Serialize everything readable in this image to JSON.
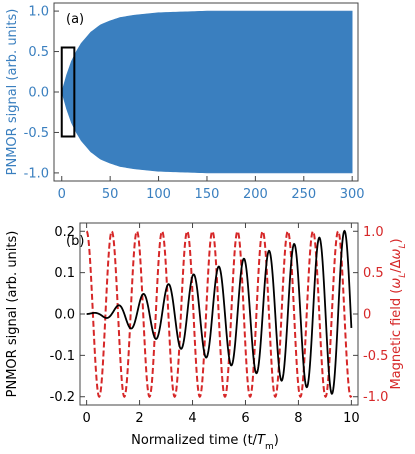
{
  "chart_data": [
    {
      "type": "area",
      "panel_label": "(a)",
      "ylabel": "PNMOR signal (arb. units)",
      "xlim": [
        -8,
        306
      ],
      "ylim": [
        -1.1,
        1.1
      ],
      "xticks": [
        0,
        50,
        100,
        150,
        200,
        250,
        300
      ],
      "yticks": [
        -1.0,
        -0.5,
        0.0,
        0.5,
        1.0
      ],
      "ytick_labels": [
        "-1.0",
        "-0.5",
        "0.0",
        "0.5",
        "1.0"
      ],
      "series": [
        {
          "envelope_x": [
            0,
            5,
            10,
            15,
            20,
            30,
            40,
            50,
            60,
            75,
            100,
            125,
            150,
            200,
            250,
            300
          ],
          "envelope_upper": [
            0.0,
            0.21,
            0.38,
            0.5,
            0.6,
            0.74,
            0.83,
            0.88,
            0.92,
            0.95,
            0.98,
            0.99,
            1.0,
            1.0,
            1.0,
            1.0
          ],
          "color": "#3a7fbf"
        }
      ],
      "annotation": "rectangle_x_0_to_13_y_-0.55_to_0.55"
    },
    {
      "type": "line",
      "panel_label": "(b)",
      "xlabel": "Normalized time (t/",
      "xlabel_sym": "T",
      "xlabel_sub": "m",
      "xlabel_end": ")",
      "ylabel": "PNMOR signal (arb. units)",
      "ylabel_right": "Magnetic field (",
      "xlim": [
        -0.25,
        10.25
      ],
      "ylim": [
        -0.22,
        0.22
      ],
      "y2lim": [
        -1.1,
        1.1
      ],
      "xticks": [
        0,
        2,
        4,
        6,
        8,
        10
      ],
      "yticks": [
        -0.2,
        -0.1,
        0.0,
        0.1,
        0.2
      ],
      "ytick_labels": [
        "-0.2",
        "-0.1",
        "0.0",
        "0.1",
        "0.2"
      ],
      "y2ticks": [
        -1.0,
        -0.5,
        0,
        0.5,
        1.0
      ],
      "y2tick_labels": [
        "-1.0",
        "-0.5",
        "0",
        "0.5",
        "1.0"
      ],
      "series": [
        {
          "color": "#000000",
          "dashed": false,
          "x": [
            0.0,
            0.5,
            1.0,
            1.5,
            2.0,
            3.0,
            4.0,
            5.0,
            6.0,
            7.0,
            8.0,
            9.0,
            9.5,
            10.0
          ],
          "amplitude": [
            0.0,
            0.005,
            0.015,
            0.03,
            0.045,
            0.07,
            0.095,
            0.115,
            0.135,
            0.155,
            0.172,
            0.188,
            0.197,
            0.205
          ],
          "period": 0.95
        },
        {
          "color": "#d62728",
          "dashed": true,
          "axis": "right",
          "x": [
            0,
            10
          ],
          "amplitude": [
            1.0,
            1.0
          ],
          "period": 0.95
        }
      ]
    }
  ],
  "colors": {
    "axis_left_a": "#3a7fbf",
    "axis_right_b": "#d62728",
    "frame": "#444444"
  }
}
